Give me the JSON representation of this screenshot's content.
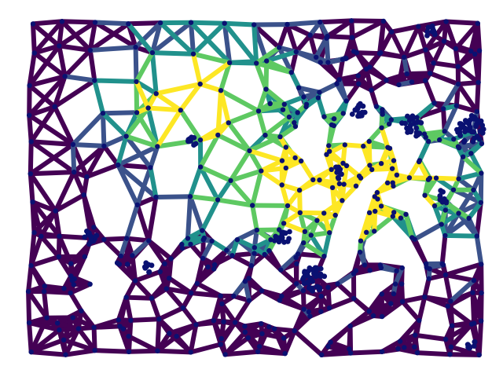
{
  "graph": {
    "palette": {
      "level_0": "#440154",
      "level_1": "#3b528b",
      "level_2": "#21918c",
      "level_3": "#5ec962",
      "level_4": "#fde725"
    },
    "node_color": "#0a1172",
    "background": "#ffffff",
    "edge_style": "thick viridis-colored mesh lines",
    "node_style": "small navy dots at vertices, dense clusters"
  }
}
